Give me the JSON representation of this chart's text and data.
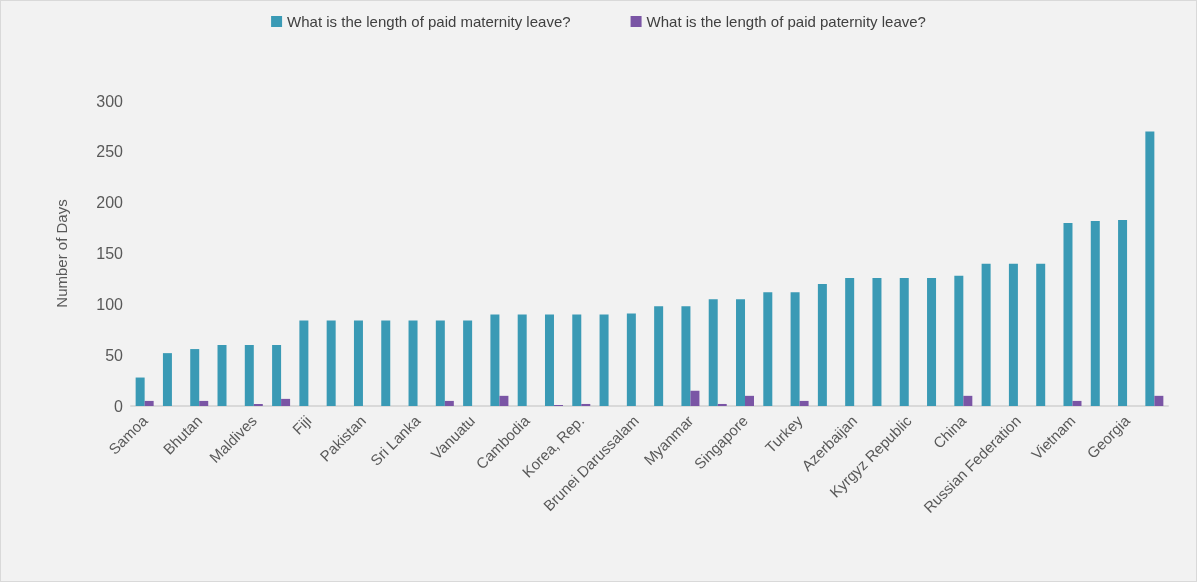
{
  "chart_data": {
    "type": "bar",
    "ylabel": "Number of Days",
    "categories": [
      "Samoa",
      null,
      "Bhutan",
      null,
      "Maldives",
      null,
      "Fiji",
      null,
      "Pakistan",
      null,
      "Sri Lanka",
      null,
      "Vanuatu",
      null,
      "Cambodia",
      null,
      "Korea, Rep.",
      null,
      "Brunei Darussalam",
      null,
      "Myanmar",
      null,
      "Singapore",
      null,
      "Turkey",
      null,
      "Azerbaijan",
      null,
      "Kyrgyz Republic",
      null,
      "China",
      null,
      "Russian Federation",
      null,
      "Vietnam",
      null,
      "Georgia",
      null
    ],
    "series": [
      {
        "name": "What is the length of paid maternity leave?",
        "color": "#3a9ab5",
        "values": [
          28,
          52,
          56,
          60,
          60,
          60,
          84,
          84,
          84,
          84,
          84,
          84,
          84,
          90,
          90,
          90,
          90,
          90,
          91,
          98,
          98,
          105,
          105,
          112,
          112,
          120,
          126,
          126,
          126,
          126,
          128,
          140,
          140,
          140,
          180,
          182,
          183,
          270
        ]
      },
      {
        "name": "What is the length of paid paternity leave?",
        "color": "#7a55a5",
        "values": [
          5,
          0,
          5,
          0,
          2,
          7,
          0,
          0,
          0,
          0,
          0,
          5,
          0,
          10,
          0,
          1,
          2,
          0,
          0,
          0,
          15,
          2,
          10,
          0,
          5,
          0,
          0,
          0,
          0,
          0,
          10,
          0,
          0,
          0,
          5,
          0,
          0,
          10
        ]
      }
    ],
    "ylim": [
      0,
      300
    ],
    "yticks": [
      0,
      50,
      100,
      150,
      200,
      250,
      300
    ],
    "grid": false,
    "legend": "top"
  }
}
